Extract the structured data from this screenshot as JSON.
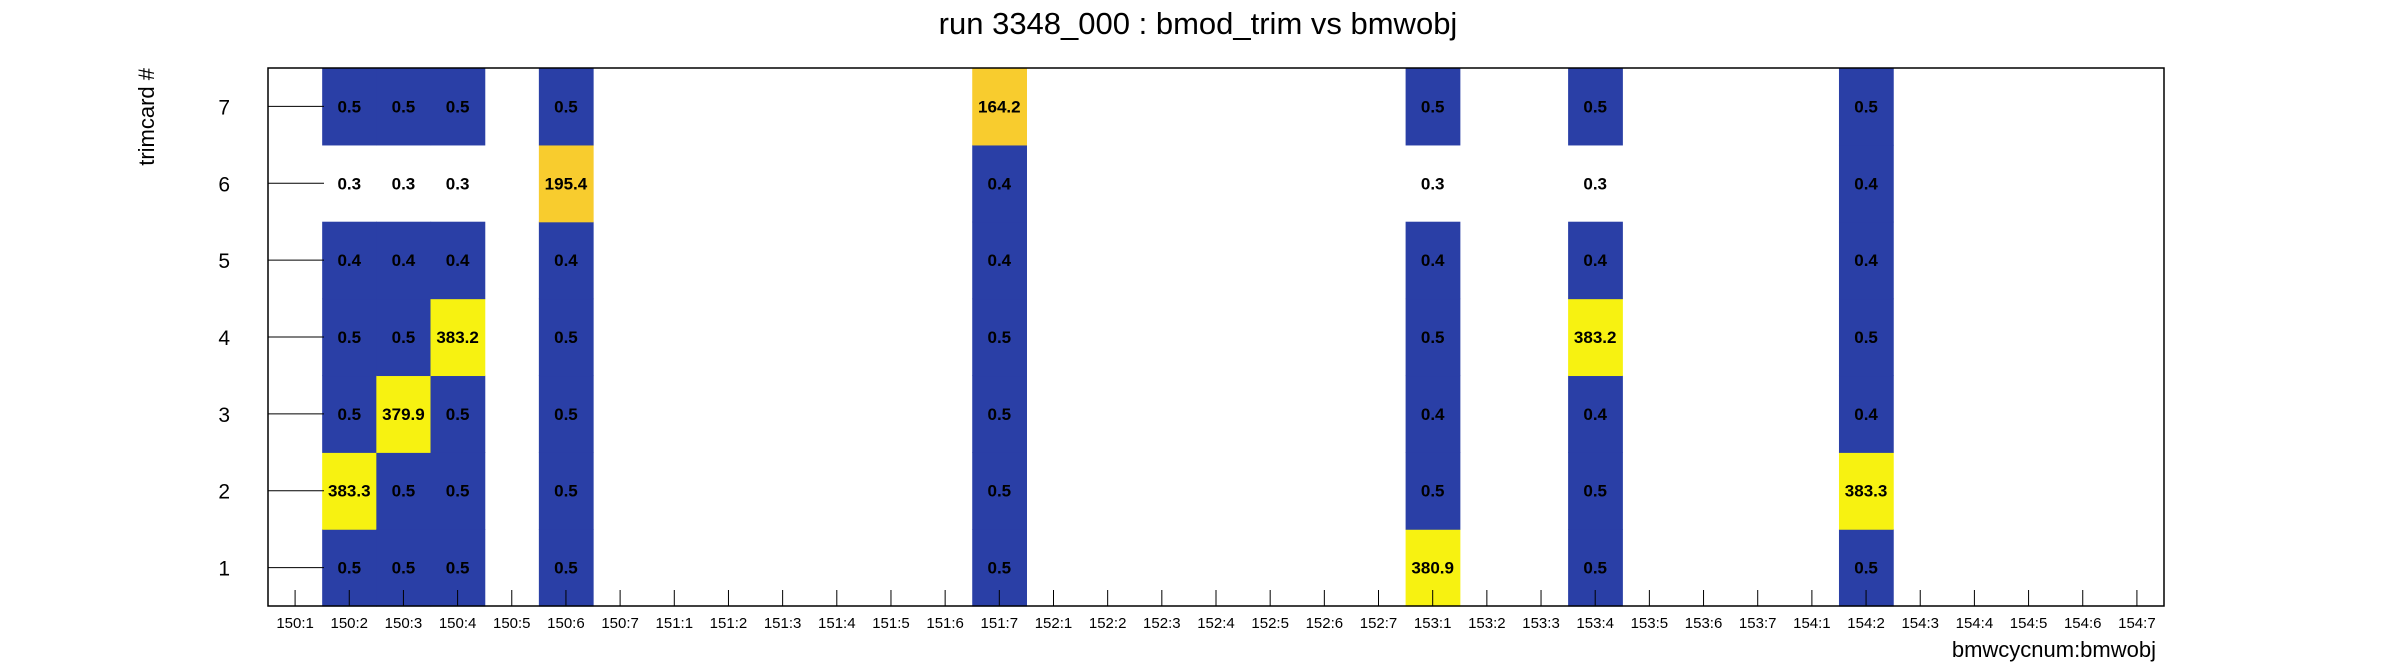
{
  "chart_data": {
    "type": "heatmap",
    "title": "run 3348_000 : bmod_trim vs bmwobj",
    "xlabel": "bmwcycnum:bmwobj",
    "ylabel": "trimcard #",
    "x_categories": [
      "150:1",
      "150:2",
      "150:3",
      "150:4",
      "150:5",
      "150:6",
      "150:7",
      "151:1",
      "151:2",
      "151:3",
      "151:4",
      "151:5",
      "151:6",
      "151:7",
      "152:1",
      "152:2",
      "152:3",
      "152:4",
      "152:5",
      "152:6",
      "152:7",
      "153:1",
      "153:2",
      "153:3",
      "153:4",
      "153:5",
      "153:6",
      "153:7",
      "154:1",
      "154:2",
      "154:3",
      "154:4",
      "154:5",
      "154:6",
      "154:7"
    ],
    "y_categories": [
      "1",
      "2",
      "3",
      "4",
      "5",
      "6",
      "7"
    ],
    "grid": false,
    "colors": {
      "low": "#2a3fa6",
      "high": "#f7f211",
      "mid_high": "#f8cc2e",
      "frame": "#000000"
    },
    "cells": [
      {
        "x": "150:2",
        "y": "1",
        "value": 0.5
      },
      {
        "x": "150:2",
        "y": "2",
        "value": 383.3
      },
      {
        "x": "150:2",
        "y": "3",
        "value": 0.5
      },
      {
        "x": "150:2",
        "y": "4",
        "value": 0.5
      },
      {
        "x": "150:2",
        "y": "5",
        "value": 0.4
      },
      {
        "x": "150:2",
        "y": "6",
        "value": 0.3
      },
      {
        "x": "150:2",
        "y": "7",
        "value": 0.5
      },
      {
        "x": "150:3",
        "y": "1",
        "value": 0.5
      },
      {
        "x": "150:3",
        "y": "2",
        "value": 0.5
      },
      {
        "x": "150:3",
        "y": "3",
        "value": 379.9
      },
      {
        "x": "150:3",
        "y": "4",
        "value": 0.5
      },
      {
        "x": "150:3",
        "y": "5",
        "value": 0.4
      },
      {
        "x": "150:3",
        "y": "6",
        "value": 0.3
      },
      {
        "x": "150:3",
        "y": "7",
        "value": 0.5
      },
      {
        "x": "150:4",
        "y": "1",
        "value": 0.5
      },
      {
        "x": "150:4",
        "y": "2",
        "value": 0.5
      },
      {
        "x": "150:4",
        "y": "3",
        "value": 0.5
      },
      {
        "x": "150:4",
        "y": "4",
        "value": 383.2
      },
      {
        "x": "150:4",
        "y": "5",
        "value": 0.4
      },
      {
        "x": "150:4",
        "y": "6",
        "value": 0.3
      },
      {
        "x": "150:4",
        "y": "7",
        "value": 0.5
      },
      {
        "x": "150:6",
        "y": "1",
        "value": 0.5
      },
      {
        "x": "150:6",
        "y": "2",
        "value": 0.5
      },
      {
        "x": "150:6",
        "y": "3",
        "value": 0.5
      },
      {
        "x": "150:6",
        "y": "4",
        "value": 0.5
      },
      {
        "x": "150:6",
        "y": "5",
        "value": 0.4
      },
      {
        "x": "150:6",
        "y": "6",
        "value": 195.4
      },
      {
        "x": "150:6",
        "y": "7",
        "value": 0.5
      },
      {
        "x": "151:7",
        "y": "1",
        "value": 0.5
      },
      {
        "x": "151:7",
        "y": "2",
        "value": 0.5
      },
      {
        "x": "151:7",
        "y": "3",
        "value": 0.5
      },
      {
        "x": "151:7",
        "y": "4",
        "value": 0.5
      },
      {
        "x": "151:7",
        "y": "5",
        "value": 0.4
      },
      {
        "x": "151:7",
        "y": "6",
        "value": 0.4
      },
      {
        "x": "151:7",
        "y": "7",
        "value": 164.2
      },
      {
        "x": "153:1",
        "y": "1",
        "value": 380.9
      },
      {
        "x": "153:1",
        "y": "2",
        "value": 0.5
      },
      {
        "x": "153:1",
        "y": "3",
        "value": 0.4
      },
      {
        "x": "153:1",
        "y": "4",
        "value": 0.5
      },
      {
        "x": "153:1",
        "y": "5",
        "value": 0.4
      },
      {
        "x": "153:1",
        "y": "6",
        "value": 0.3
      },
      {
        "x": "153:1",
        "y": "7",
        "value": 0.5
      },
      {
        "x": "153:4",
        "y": "1",
        "value": 0.5
      },
      {
        "x": "153:4",
        "y": "2",
        "value": 0.5
      },
      {
        "x": "153:4",
        "y": "3",
        "value": 0.4
      },
      {
        "x": "153:4",
        "y": "4",
        "value": 383.2
      },
      {
        "x": "153:4",
        "y": "5",
        "value": 0.4
      },
      {
        "x": "153:4",
        "y": "6",
        "value": 0.3
      },
      {
        "x": "153:4",
        "y": "7",
        "value": 0.5
      },
      {
        "x": "154:2",
        "y": "1",
        "value": 0.5
      },
      {
        "x": "154:2",
        "y": "2",
        "value": 383.3
      },
      {
        "x": "154:2",
        "y": "3",
        "value": 0.4
      },
      {
        "x": "154:2",
        "y": "4",
        "value": 0.5
      },
      {
        "x": "154:2",
        "y": "5",
        "value": 0.4
      },
      {
        "x": "154:2",
        "y": "6",
        "value": 0.4
      },
      {
        "x": "154:2",
        "y": "7",
        "value": 0.5
      }
    ]
  }
}
